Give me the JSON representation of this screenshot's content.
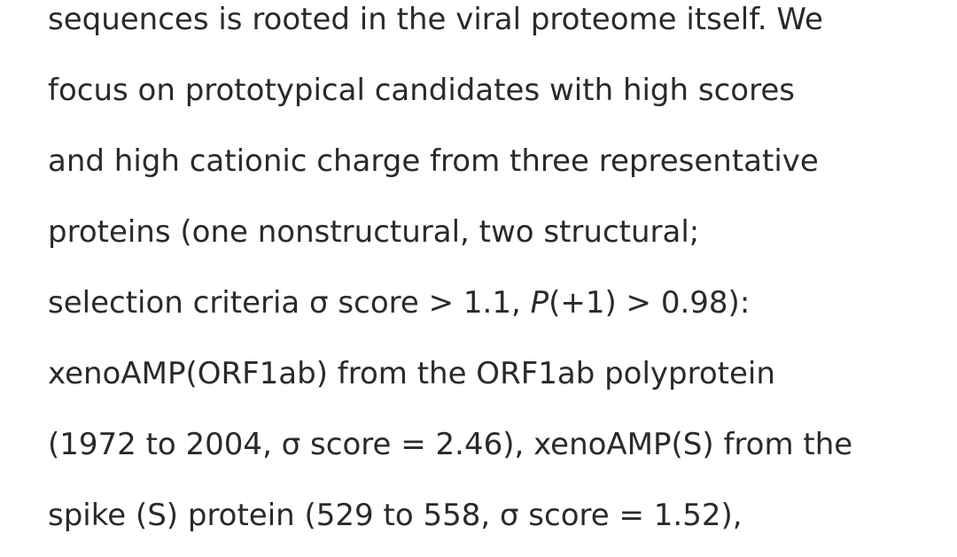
{
  "paragraph": {
    "lines": [
      "sequences is rooted in the viral proteome itself. We",
      "focus on prototypical candidates with high scores",
      "and high cationic charge from three representative",
      "proteins (one nonstructural, two structural;"
    ],
    "line_selection": {
      "before": "selection criteria σ score > 1.1, ",
      "italic_p": "P",
      "after": "(+1) > 0.98):"
    },
    "lines_end": [
      "xenoAMP(ORF1ab) from the ORF1ab polyprotein",
      "(1972 to 2004, σ score = 2.46), xenoAMP(S) from the",
      "spike (S) protein (529 to 558, σ score = 1.52),"
    ]
  }
}
